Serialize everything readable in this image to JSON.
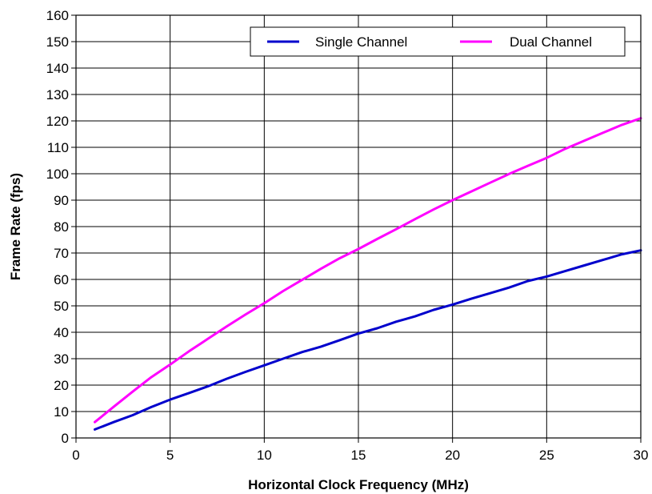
{
  "chart_data": {
    "type": "line",
    "xlabel": "Horizontal Clock Frequency (MHz)",
    "ylabel": "Frame Rate (fps)",
    "xlim": [
      0,
      30
    ],
    "ylim": [
      0,
      160
    ],
    "xticks": [
      0,
      5,
      10,
      15,
      20,
      25,
      30
    ],
    "yticks": [
      0,
      10,
      20,
      30,
      40,
      50,
      60,
      70,
      80,
      90,
      100,
      110,
      120,
      130,
      140,
      150,
      160
    ],
    "grid": true,
    "legend_position": "top-right",
    "x": [
      1,
      2,
      3,
      4,
      5,
      6,
      7,
      8,
      9,
      10,
      11,
      12,
      13,
      14,
      15,
      16,
      17,
      18,
      19,
      20,
      21,
      22,
      23,
      24,
      25,
      26,
      27,
      28,
      29,
      30
    ],
    "series": [
      {
        "name": "Single Channel",
        "color": "#0000cc",
        "values": [
          3.2,
          6,
          8.6,
          11.7,
          14.5,
          17,
          19.5,
          22.4,
          25,
          27.5,
          30,
          32.5,
          34.5,
          37,
          39.5,
          41.5,
          44,
          46,
          48.5,
          50.5,
          52.7,
          54.8,
          56.9,
          59.4,
          61.1,
          63.2,
          65.3,
          67.4,
          69.5,
          71
        ]
      },
      {
        "name": "Dual Channel",
        "color": "#ff00ff",
        "values": [
          6,
          11.8,
          17.5,
          23,
          27.8,
          32.8,
          37.5,
          42.2,
          46.7,
          51,
          55.6,
          59.8,
          64,
          68,
          71.5,
          75.3,
          79,
          82.8,
          86.5,
          90,
          93.3,
          96.6,
          99.9,
          103,
          106,
          109.5,
          112.5,
          115.5,
          118.5,
          121
        ]
      }
    ]
  }
}
